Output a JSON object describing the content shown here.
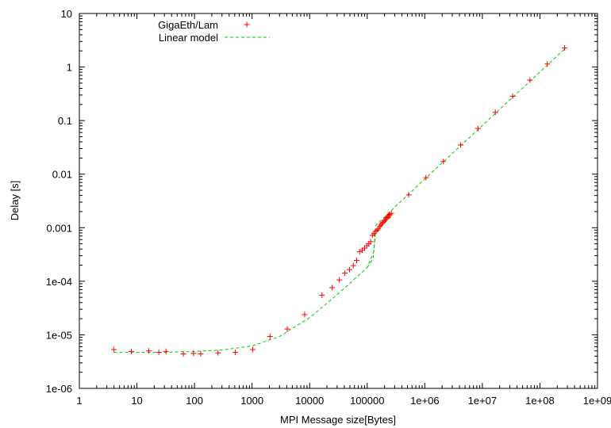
{
  "chart_data": {
    "type": "scatter",
    "title": "",
    "xlabel": "MPI Message size[Bytes]",
    "ylabel": "Delay [s]",
    "xscale": "log",
    "yscale": "log",
    "xlim": [
      1,
      1000000000
    ],
    "ylim": [
      1e-06,
      10
    ],
    "grid": false,
    "legend_position": "top-left",
    "x_ticks": [
      {
        "value": 1,
        "label": "1"
      },
      {
        "value": 10,
        "label": "10"
      },
      {
        "value": 100,
        "label": "100"
      },
      {
        "value": 1000,
        "label": "1000"
      },
      {
        "value": 10000,
        "label": "10000"
      },
      {
        "value": 100000,
        "label": "100000"
      },
      {
        "value": 1000000,
        "label": "1e+06"
      },
      {
        "value": 10000000,
        "label": "1e+07"
      },
      {
        "value": 100000000,
        "label": "1e+08"
      },
      {
        "value": 1000000000,
        "label": "1e+09"
      }
    ],
    "y_ticks": [
      {
        "value": 1e-06,
        "label": "1e-06"
      },
      {
        "value": 1e-05,
        "label": "1e-05"
      },
      {
        "value": 0.0001,
        "label": "1e-04"
      },
      {
        "value": 0.001,
        "label": "0.001"
      },
      {
        "value": 0.01,
        "label": "0.01"
      },
      {
        "value": 0.1,
        "label": "0.1"
      },
      {
        "value": 1,
        "label": "1"
      },
      {
        "value": 10,
        "label": "10"
      }
    ],
    "series": [
      {
        "name": "GigaEth/Lam",
        "type": "scatter",
        "marker": "+",
        "color": "#ff0000",
        "points": [
          [
            4,
            5.3e-06
          ],
          [
            8,
            4.9e-06
          ],
          [
            16,
            5e-06
          ],
          [
            24,
            4.7e-06
          ],
          [
            32,
            4.9e-06
          ],
          [
            64,
            4.4e-06
          ],
          [
            96,
            4.5e-06
          ],
          [
            128,
            4.4e-06
          ],
          [
            256,
            4.6e-06
          ],
          [
            512,
            4.7e-06
          ],
          [
            1024,
            5.3e-06
          ],
          [
            2048,
            9.3e-06
          ],
          [
            4096,
            1.28e-05
          ],
          [
            8192,
            2.38e-05
          ],
          [
            16384,
            5.5e-05
          ],
          [
            24576,
            7.6e-05
          ],
          [
            32768,
            0.000106
          ],
          [
            40960,
            0.000142
          ],
          [
            49152,
            0.000165
          ],
          [
            57344,
            0.000196
          ],
          [
            65536,
            0.000245
          ],
          [
            73728,
            0.000355
          ],
          [
            81920,
            0.00038
          ],
          [
            90112,
            0.000415
          ],
          [
            98304,
            0.00046
          ],
          [
            106496,
            0.0005
          ],
          [
            114688,
            0.00055
          ],
          [
            122880,
            0.00072
          ],
          [
            131072,
            0.00078
          ],
          [
            139264,
            0.00085
          ],
          [
            147456,
            0.0009
          ],
          [
            155648,
            0.00095
          ],
          [
            163840,
            0.00105
          ],
          [
            172032,
            0.00112
          ],
          [
            180224,
            0.0012
          ],
          [
            188416,
            0.00125
          ],
          [
            196608,
            0.00133
          ],
          [
            204800,
            0.0014
          ],
          [
            212992,
            0.00148
          ],
          [
            221184,
            0.00155
          ],
          [
            229376,
            0.00162
          ],
          [
            237568,
            0.0017
          ],
          [
            245760,
            0.00178
          ],
          [
            262144,
            0.00185
          ],
          [
            524288,
            0.0041
          ],
          [
            1048576,
            0.0086
          ],
          [
            2097152,
            0.0172
          ],
          [
            4194304,
            0.035
          ],
          [
            8388608,
            0.071
          ],
          [
            16777216,
            0.142
          ],
          [
            33554432,
            0.285
          ],
          [
            67108864,
            0.57
          ],
          [
            134217728,
            1.14
          ],
          [
            268435456,
            2.27
          ]
        ]
      },
      {
        "name": "Linear model",
        "type": "line",
        "style": "dashed",
        "color": "#00cc00",
        "points": [
          [
            4,
            4.7e-06
          ],
          [
            10,
            4.7e-06
          ],
          [
            30,
            4.7e-06
          ],
          [
            100,
            4.9e-06
          ],
          [
            300,
            5.2e-06
          ],
          [
            1000,
            6.2e-06
          ],
          [
            3000,
            9.3e-06
          ],
          [
            10000,
            2.1e-05
          ],
          [
            30000,
            5.6e-05
          ],
          [
            100000,
            0.00018
          ],
          [
            130000,
            0.00036
          ],
          [
            140000,
            0.0011
          ],
          [
            262144,
            0.0021
          ],
          [
            1000000,
            0.0081
          ],
          [
            10000000,
            0.081
          ],
          [
            100000000,
            0.81
          ],
          [
            268435456,
            2.17
          ]
        ]
      },
      {
        "name": "",
        "type": "line",
        "style": "dashed",
        "color": "#00cc00",
        "points": [
          [
            100000,
            0.00018
          ],
          [
            126000,
            0.00026
          ],
          [
            130000,
            0.00036
          ],
          [
            140000,
            0.0008
          ],
          [
            180000,
            0.0011
          ],
          [
            262144,
            0.0016
          ]
        ]
      }
    ]
  }
}
